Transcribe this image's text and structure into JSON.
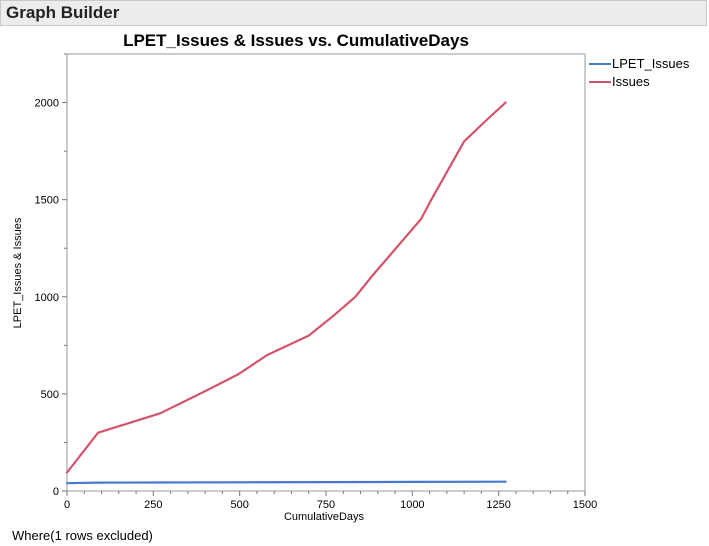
{
  "window": {
    "title": "Graph Builder"
  },
  "footer": {
    "note": "Where(1 rows excluded)"
  },
  "colors": {
    "lpet": "#4a78d0",
    "issues": "#d3546a"
  },
  "chart_data": {
    "type": "line",
    "title": "LPET_Issues & Issues vs. CumulativeDays",
    "xlabel": "CumulativeDays",
    "ylabel": "LPET_Issues & Issues",
    "xlim": [
      0,
      1500
    ],
    "ylim": [
      0,
      2250
    ],
    "xticks": [
      0,
      250,
      500,
      750,
      1000,
      1250,
      1500
    ],
    "yticks": [
      0,
      500,
      1000,
      1500,
      2000
    ],
    "grid": false,
    "legend_position": "right",
    "series": [
      {
        "name": "LPET_Issues",
        "color": "#4a78d0",
        "x": [
          0,
          90,
          250,
          500,
          750,
          1000,
          1270
        ],
        "y": [
          40,
          43,
          44,
          45,
          46,
          47,
          48
        ]
      },
      {
        "name": "Issues",
        "color": "#d3546a",
        "x": [
          0,
          90,
          270,
          390,
          495,
          580,
          700,
          770,
          835,
          880,
          1025,
          1055,
          1150,
          1215,
          1270
        ],
        "y": [
          95,
          300,
          400,
          505,
          600,
          700,
          800,
          900,
          1000,
          1100,
          1400,
          1500,
          1800,
          1910,
          2000
        ]
      }
    ]
  }
}
